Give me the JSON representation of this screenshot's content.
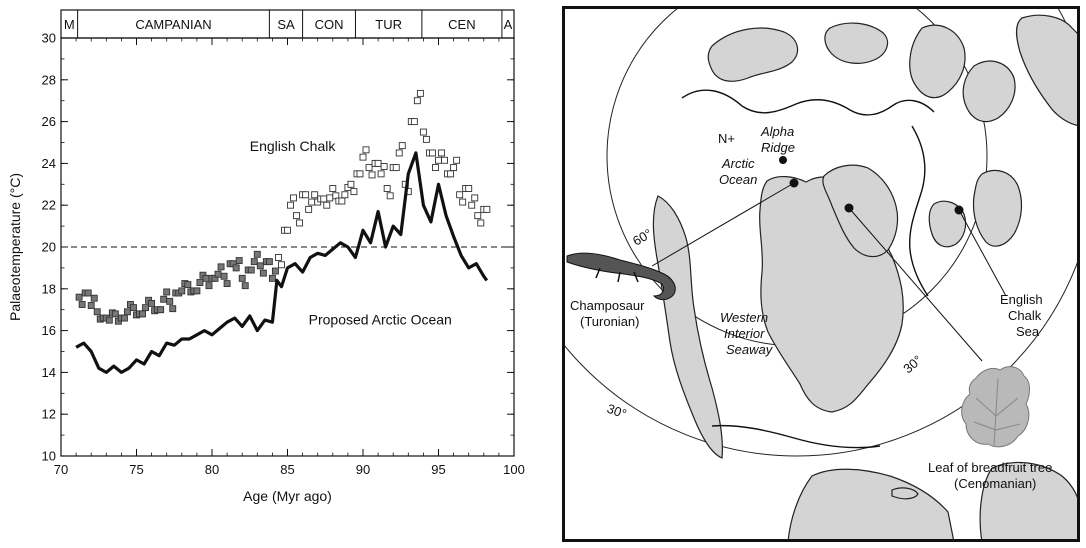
{
  "chart_data": {
    "type": "line",
    "xlabel": "Age (Myr ago)",
    "ylabel": "Palaeotemperature (°C)",
    "xlim": [
      70,
      100
    ],
    "ylim": [
      10,
      30
    ],
    "xticks": [
      70,
      75,
      80,
      85,
      90,
      95,
      100
    ],
    "yticks": [
      10,
      12,
      14,
      16,
      18,
      20,
      22,
      24,
      26,
      28,
      30
    ],
    "reference_line": 20,
    "stages": [
      {
        "label": "M",
        "from": 70,
        "to": 71.1
      },
      {
        "label": "CAMPANIAN",
        "from": 71.1,
        "to": 83.8
      },
      {
        "label": "SA",
        "from": 83.8,
        "to": 86.0
      },
      {
        "label": "CON",
        "from": 86.0,
        "to": 89.5
      },
      {
        "label": "TUR",
        "from": 89.5,
        "to": 93.9
      },
      {
        "label": "CEN",
        "from": 93.9,
        "to": 99.2
      },
      {
        "label": "A",
        "from": 99.2,
        "to": 100
      }
    ],
    "series": [
      {
        "name": "English Chalk",
        "style": "open squares",
        "x": [
          71.2,
          71.6,
          72.0,
          72.4,
          72.8,
          73.2,
          73.6,
          74.0,
          74.4,
          74.8,
          75.2,
          75.6,
          76.0,
          76.4,
          76.8,
          77.2,
          77.6,
          78.0,
          78.4,
          78.8,
          79.2,
          79.6,
          80.0,
          80.4,
          80.8,
          81.2,
          81.6,
          82.0,
          82.4,
          82.8,
          83.2,
          83.6,
          84.0,
          84.4,
          84.8,
          85.2,
          85.6,
          86.0,
          86.4,
          86.8,
          87.2,
          87.6,
          88.0,
          88.4,
          88.8,
          89.2,
          89.6,
          90.0,
          90.4,
          90.8,
          91.2,
          91.6,
          92.0,
          92.4,
          92.8,
          93.2,
          93.6,
          94.0,
          94.4,
          94.8,
          95.2,
          95.6,
          96.0,
          96.4,
          96.8,
          97.2,
          97.6,
          98.0
        ],
        "y": [
          17.6,
          17.8,
          17.2,
          16.9,
          16.6,
          16.5,
          16.8,
          16.6,
          16.9,
          17.1,
          16.8,
          17.1,
          17.3,
          17.0,
          17.5,
          17.4,
          17.8,
          17.9,
          18.2,
          17.9,
          18.3,
          18.5,
          18.5,
          18.7,
          18.6,
          19.2,
          19.0,
          18.5,
          18.9,
          19.3,
          19.1,
          19.3,
          18.5,
          19.5,
          20.8,
          22.0,
          21.5,
          22.5,
          21.8,
          22.5,
          22.3,
          22.0,
          22.8,
          22.2,
          22.5,
          23.0,
          23.5,
          24.3,
          23.8,
          24.0,
          23.5,
          22.8,
          23.8,
          24.5,
          23.0,
          26.0,
          27.0,
          25.5,
          24.5,
          23.8,
          24.5,
          23.5,
          23.8,
          22.5,
          22.8,
          22.0,
          21.5,
          21.8
        ]
      },
      {
        "name": "Proposed Arctic Ocean",
        "style": "thick line",
        "x": [
          71.0,
          71.5,
          72.0,
          72.5,
          73.0,
          73.5,
          74.0,
          74.5,
          75.0,
          75.5,
          76.0,
          76.5,
          77.0,
          77.5,
          78.0,
          78.5,
          79.0,
          79.5,
          80.0,
          80.5,
          81.0,
          81.5,
          82.0,
          82.5,
          83.0,
          83.5,
          84.0,
          84.3,
          84.6,
          85.0,
          85.5,
          86.0,
          86.5,
          87.0,
          87.5,
          88.0,
          88.5,
          89.0,
          89.5,
          90.0,
          90.5,
          91.0,
          91.5,
          92.0,
          92.5,
          93.0,
          93.5,
          94.0,
          94.5,
          95.0,
          95.5,
          96.0,
          96.5,
          97.0,
          97.5,
          98.0,
          98.2
        ],
        "y": [
          15.2,
          15.4,
          15.0,
          14.2,
          14.0,
          14.3,
          14.0,
          14.2,
          14.6,
          14.4,
          15.0,
          14.8,
          15.4,
          15.3,
          15.6,
          15.6,
          15.8,
          16.0,
          15.8,
          16.1,
          16.4,
          16.6,
          16.2,
          16.7,
          16.0,
          16.5,
          16.4,
          18.4,
          18.1,
          19.0,
          19.2,
          18.8,
          19.5,
          19.7,
          19.6,
          19.9,
          20.2,
          20.0,
          19.5,
          20.8,
          20.2,
          21.7,
          20.0,
          21.0,
          20.6,
          23.5,
          24.5,
          22.0,
          21.2,
          23.0,
          21.5,
          20.5,
          19.6,
          19.0,
          19.2,
          18.6,
          18.4
        ]
      }
    ],
    "annotations": {
      "english_chalk": "English Chalk",
      "arctic_ocean": "Proposed Arctic Ocean"
    }
  },
  "map": {
    "labels": {
      "north_pole": "N+",
      "alpha_ridge_1": "Alpha",
      "alpha_ridge_2": "Ridge",
      "arctic_ocean_1": "Arctic",
      "arctic_ocean_2": "Ocean",
      "lat_60": "60°",
      "lat_30_left": "30°",
      "lat_30_right": "30°",
      "champosaur_1": "Champosaur",
      "champosaur_2": "(Turonian)",
      "seaway_1": "Western",
      "seaway_2": "Interior",
      "seaway_3": "Seaway",
      "chalk_sea_1": "English",
      "chalk_sea_2": "Chalk",
      "chalk_sea_3": "Sea",
      "leaf_1": "Leaf of breadfruit tree",
      "leaf_2": "(Cenomanian)"
    }
  }
}
